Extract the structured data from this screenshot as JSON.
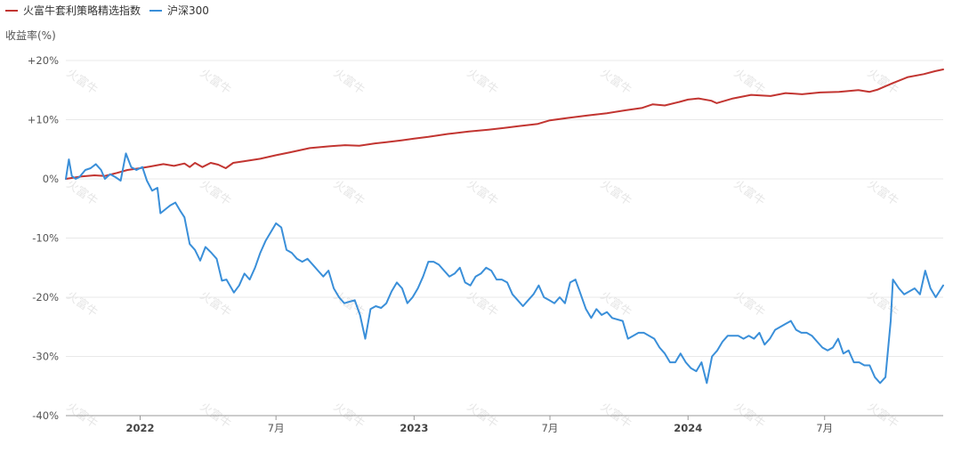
{
  "chart_data": {
    "type": "line",
    "ylabel": "收益率(%)",
    "ylim": [
      -40,
      20
    ],
    "yticks": [
      {
        "value": 20,
        "label": "+20%"
      },
      {
        "value": 10,
        "label": "+10%"
      },
      {
        "value": 0,
        "label": "0%"
      },
      {
        "value": -10,
        "label": "-10%"
      },
      {
        "value": -20,
        "label": "-20%"
      },
      {
        "value": -30,
        "label": "-30%"
      },
      {
        "value": -40,
        "label": "-40%"
      }
    ],
    "xlim": [
      "2021-09-24",
      "2024-12-06"
    ],
    "xticks": [
      {
        "date": "2022-01-01",
        "label": "2022",
        "major": true
      },
      {
        "date": "2022-07-01",
        "label": "7月",
        "major": false
      },
      {
        "date": "2023-01-01",
        "label": "2023",
        "major": true
      },
      {
        "date": "2023-07-01",
        "label": "7月",
        "major": false
      },
      {
        "date": "2024-01-01",
        "label": "2024",
        "major": true
      },
      {
        "date": "2024-07-01",
        "label": "7月",
        "major": false
      }
    ],
    "grid": true,
    "legend_position": "top-left",
    "watermark": "火富牛",
    "series": [
      {
        "name": "火富牛套利策略精选指数",
        "color": "#c23531",
        "points": [
          [
            "2021-09-24",
            0.0
          ],
          [
            "2021-10-15",
            0.4
          ],
          [
            "2021-11-01",
            0.6
          ],
          [
            "2021-11-15",
            0.5
          ],
          [
            "2021-12-01",
            1.0
          ],
          [
            "2021-12-15",
            1.5
          ],
          [
            "2022-01-01",
            1.8
          ],
          [
            "2022-01-15",
            2.1
          ],
          [
            "2022-02-01",
            2.5
          ],
          [
            "2022-02-15",
            2.2
          ],
          [
            "2022-03-01",
            2.6
          ],
          [
            "2022-03-08",
            2.0
          ],
          [
            "2022-03-15",
            2.7
          ],
          [
            "2022-03-25",
            2.0
          ],
          [
            "2022-04-05",
            2.7
          ],
          [
            "2022-04-15",
            2.4
          ],
          [
            "2022-04-25",
            1.8
          ],
          [
            "2022-05-05",
            2.7
          ],
          [
            "2022-05-20",
            3.0
          ],
          [
            "2022-06-10",
            3.4
          ],
          [
            "2022-07-01",
            4.0
          ],
          [
            "2022-07-20",
            4.5
          ],
          [
            "2022-08-15",
            5.2
          ],
          [
            "2022-09-10",
            5.5
          ],
          [
            "2022-10-01",
            5.7
          ],
          [
            "2022-10-20",
            5.6
          ],
          [
            "2022-11-10",
            6.0
          ],
          [
            "2022-11-25",
            6.2
          ],
          [
            "2022-12-15",
            6.5
          ],
          [
            "2023-01-01",
            6.8
          ],
          [
            "2023-01-20",
            7.1
          ],
          [
            "2023-02-15",
            7.6
          ],
          [
            "2023-03-15",
            8.0
          ],
          [
            "2023-04-10",
            8.3
          ],
          [
            "2023-05-01",
            8.6
          ],
          [
            "2023-05-20",
            8.9
          ],
          [
            "2023-06-15",
            9.3
          ],
          [
            "2023-07-01",
            9.9
          ],
          [
            "2023-07-25",
            10.3
          ],
          [
            "2023-08-20",
            10.7
          ],
          [
            "2023-09-15",
            11.1
          ],
          [
            "2023-10-10",
            11.6
          ],
          [
            "2023-11-01",
            12.0
          ],
          [
            "2023-11-15",
            12.6
          ],
          [
            "2023-12-01",
            12.4
          ],
          [
            "2023-12-20",
            13.0
          ],
          [
            "2024-01-01",
            13.4
          ],
          [
            "2024-01-15",
            13.6
          ],
          [
            "2024-02-01",
            13.2
          ],
          [
            "2024-02-08",
            12.8
          ],
          [
            "2024-03-01",
            13.6
          ],
          [
            "2024-03-25",
            14.2
          ],
          [
            "2024-04-20",
            14.0
          ],
          [
            "2024-05-10",
            14.5
          ],
          [
            "2024-06-01",
            14.3
          ],
          [
            "2024-06-25",
            14.6
          ],
          [
            "2024-07-20",
            14.7
          ],
          [
            "2024-08-15",
            15.0
          ],
          [
            "2024-08-30",
            14.7
          ],
          [
            "2024-09-10",
            15.1
          ],
          [
            "2024-09-30",
            16.2
          ],
          [
            "2024-10-20",
            17.2
          ],
          [
            "2024-11-10",
            17.7
          ],
          [
            "2024-11-25",
            18.2
          ],
          [
            "2024-12-06",
            18.5
          ]
        ]
      },
      {
        "name": "沪深300",
        "color": "#3a8fd9",
        "points": [
          [
            "2021-09-24",
            0.0
          ],
          [
            "2021-09-28",
            3.3
          ],
          [
            "2021-10-02",
            0.5
          ],
          [
            "2021-10-07",
            0.0
          ],
          [
            "2021-10-12",
            0.3
          ],
          [
            "2021-10-20",
            1.5
          ],
          [
            "2021-10-27",
            1.8
          ],
          [
            "2021-11-03",
            2.5
          ],
          [
            "2021-11-10",
            1.5
          ],
          [
            "2021-11-15",
            0.0
          ],
          [
            "2021-11-22",
            0.8
          ],
          [
            "2021-11-29",
            0.3
          ],
          [
            "2021-12-06",
            -0.3
          ],
          [
            "2021-12-13",
            4.3
          ],
          [
            "2021-12-20",
            2.0
          ],
          [
            "2021-12-27",
            1.5
          ],
          [
            "2022-01-04",
            2.0
          ],
          [
            "2022-01-10",
            -0.3
          ],
          [
            "2022-01-17",
            -2.0
          ],
          [
            "2022-01-24",
            -1.5
          ],
          [
            "2022-01-28",
            -5.8
          ],
          [
            "2022-02-10",
            -4.5
          ],
          [
            "2022-02-17",
            -4.0
          ],
          [
            "2022-02-24",
            -5.5
          ],
          [
            "2022-03-01",
            -6.5
          ],
          [
            "2022-03-08",
            -11.0
          ],
          [
            "2022-03-15",
            -12.0
          ],
          [
            "2022-03-22",
            -13.8
          ],
          [
            "2022-03-29",
            -11.5
          ],
          [
            "2022-04-06",
            -12.5
          ],
          [
            "2022-04-13",
            -13.5
          ],
          [
            "2022-04-20",
            -17.2
          ],
          [
            "2022-04-26",
            -17.0
          ],
          [
            "2022-05-06",
            -19.2
          ],
          [
            "2022-05-13",
            -18.0
          ],
          [
            "2022-05-20",
            -16.0
          ],
          [
            "2022-05-27",
            -17.0
          ],
          [
            "2022-06-03",
            -15.0
          ],
          [
            "2022-06-10",
            -12.5
          ],
          [
            "2022-06-17",
            -10.5
          ],
          [
            "2022-06-24",
            -9.0
          ],
          [
            "2022-07-01",
            -7.5
          ],
          [
            "2022-07-08",
            -8.2
          ],
          [
            "2022-07-15",
            -12.0
          ],
          [
            "2022-07-22",
            -12.5
          ],
          [
            "2022-07-29",
            -13.5
          ],
          [
            "2022-08-05",
            -14.0
          ],
          [
            "2022-08-12",
            -13.5
          ],
          [
            "2022-08-19",
            -14.5
          ],
          [
            "2022-08-26",
            -15.5
          ],
          [
            "2022-09-02",
            -16.5
          ],
          [
            "2022-09-09",
            -15.5
          ],
          [
            "2022-09-16",
            -18.5
          ],
          [
            "2022-09-23",
            -20.0
          ],
          [
            "2022-09-30",
            -21.0
          ],
          [
            "2022-10-14",
            -20.5
          ],
          [
            "2022-10-21",
            -23.0
          ],
          [
            "2022-10-28",
            -27.0
          ],
          [
            "2022-11-04",
            -22.0
          ],
          [
            "2022-11-11",
            -21.5
          ],
          [
            "2022-11-18",
            -21.8
          ],
          [
            "2022-11-25",
            -21.0
          ],
          [
            "2022-12-02",
            -19.0
          ],
          [
            "2022-12-09",
            -17.5
          ],
          [
            "2022-12-16",
            -18.5
          ],
          [
            "2022-12-23",
            -21.0
          ],
          [
            "2022-12-30",
            -20.0
          ],
          [
            "2023-01-06",
            -18.5
          ],
          [
            "2023-01-13",
            -16.5
          ],
          [
            "2023-01-20",
            -14.0
          ],
          [
            "2023-01-27",
            -14.0
          ],
          [
            "2023-02-03",
            -14.5
          ],
          [
            "2023-02-10",
            -15.5
          ],
          [
            "2023-02-17",
            -16.5
          ],
          [
            "2023-02-24",
            -16.0
          ],
          [
            "2023-03-03",
            -15.0
          ],
          [
            "2023-03-10",
            -17.5
          ],
          [
            "2023-03-17",
            -18.0
          ],
          [
            "2023-03-24",
            -16.5
          ],
          [
            "2023-03-31",
            -16.0
          ],
          [
            "2023-04-07",
            -15.0
          ],
          [
            "2023-04-14",
            -15.5
          ],
          [
            "2023-04-21",
            -17.0
          ],
          [
            "2023-04-28",
            -17.0
          ],
          [
            "2023-05-05",
            -17.5
          ],
          [
            "2023-05-12",
            -19.5
          ],
          [
            "2023-05-19",
            -20.5
          ],
          [
            "2023-05-26",
            -21.5
          ],
          [
            "2023-06-02",
            -20.5
          ],
          [
            "2023-06-09",
            -19.5
          ],
          [
            "2023-06-16",
            -18.0
          ],
          [
            "2023-06-23",
            -20.0
          ],
          [
            "2023-06-30",
            -20.5
          ],
          [
            "2023-07-07",
            -21.0
          ],
          [
            "2023-07-14",
            -20.0
          ],
          [
            "2023-07-21",
            -21.0
          ],
          [
            "2023-07-28",
            -17.5
          ],
          [
            "2023-08-04",
            -17.0
          ],
          [
            "2023-08-11",
            -19.5
          ],
          [
            "2023-08-18",
            -22.0
          ],
          [
            "2023-08-25",
            -23.5
          ],
          [
            "2023-09-01",
            -22.0
          ],
          [
            "2023-09-08",
            -23.0
          ],
          [
            "2023-09-15",
            -22.5
          ],
          [
            "2023-09-22",
            -23.5
          ],
          [
            "2023-10-06",
            -24.0
          ],
          [
            "2023-10-13",
            -27.0
          ],
          [
            "2023-10-20",
            -26.5
          ],
          [
            "2023-10-27",
            -26.0
          ],
          [
            "2023-11-03",
            -26.0
          ],
          [
            "2023-11-10",
            -26.5
          ],
          [
            "2023-11-17",
            -27.0
          ],
          [
            "2023-11-24",
            -28.5
          ],
          [
            "2023-12-01",
            -29.5
          ],
          [
            "2023-12-08",
            -31.0
          ],
          [
            "2023-12-15",
            -31.0
          ],
          [
            "2023-12-22",
            -29.5
          ],
          [
            "2023-12-29",
            -31.0
          ],
          [
            "2024-01-05",
            -32.0
          ],
          [
            "2024-01-12",
            -32.5
          ],
          [
            "2024-01-19",
            -31.0
          ],
          [
            "2024-01-26",
            -34.5
          ],
          [
            "2024-02-02",
            -30.0
          ],
          [
            "2024-02-09",
            -29.0
          ],
          [
            "2024-02-16",
            -27.5
          ],
          [
            "2024-02-23",
            -26.5
          ],
          [
            "2024-03-01",
            -26.5
          ],
          [
            "2024-03-08",
            -26.5
          ],
          [
            "2024-03-15",
            -27.0
          ],
          [
            "2024-03-22",
            -26.5
          ],
          [
            "2024-03-29",
            -27.0
          ],
          [
            "2024-04-05",
            -26.0
          ],
          [
            "2024-04-12",
            -28.0
          ],
          [
            "2024-04-19",
            -27.0
          ],
          [
            "2024-04-26",
            -25.5
          ],
          [
            "2024-05-03",
            -25.0
          ],
          [
            "2024-05-10",
            -24.5
          ],
          [
            "2024-05-17",
            -24.0
          ],
          [
            "2024-05-24",
            -25.5
          ],
          [
            "2024-05-31",
            -26.0
          ],
          [
            "2024-06-07",
            -26.0
          ],
          [
            "2024-06-14",
            -26.5
          ],
          [
            "2024-06-21",
            -27.5
          ],
          [
            "2024-06-28",
            -28.5
          ],
          [
            "2024-07-05",
            -29.0
          ],
          [
            "2024-07-12",
            -28.5
          ],
          [
            "2024-07-19",
            -27.0
          ],
          [
            "2024-07-26",
            -29.5
          ],
          [
            "2024-08-02",
            -29.0
          ],
          [
            "2024-08-09",
            -31.0
          ],
          [
            "2024-08-16",
            -31.0
          ],
          [
            "2024-08-23",
            -31.5
          ],
          [
            "2024-08-30",
            -31.5
          ],
          [
            "2024-09-06",
            -33.5
          ],
          [
            "2024-09-13",
            -34.5
          ],
          [
            "2024-09-20",
            -33.5
          ],
          [
            "2024-09-27",
            -24.0
          ],
          [
            "2024-09-30",
            -17.0
          ],
          [
            "2024-10-08",
            -18.5
          ],
          [
            "2024-10-15",
            -19.5
          ],
          [
            "2024-10-22",
            -19.0
          ],
          [
            "2024-10-29",
            -18.5
          ],
          [
            "2024-11-05",
            -19.5
          ],
          [
            "2024-11-12",
            -15.5
          ],
          [
            "2024-11-19",
            -18.5
          ],
          [
            "2024-11-26",
            -20.0
          ],
          [
            "2024-12-06",
            -18.0
          ]
        ]
      }
    ]
  }
}
